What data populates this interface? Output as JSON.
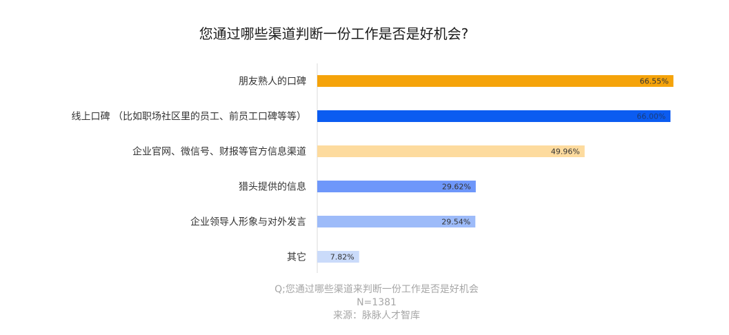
{
  "chart_data": {
    "type": "bar",
    "orientation": "horizontal",
    "title": "您通过哪些渠道判断一份工作是否是好机会?",
    "categories": [
      "朋友熟人的口碑",
      "线上口碑 （比如职场社区里的员工、前员工口碑等等）",
      "企业官网、微信号、财报等官方信息渠道",
      "猎头提供的信息",
      "企业领导人形象与对外发言",
      "其它"
    ],
    "values": [
      66.55,
      66.0,
      49.96,
      29.62,
      29.54,
      7.82
    ],
    "value_labels": [
      "66.55%",
      "66.00%",
      "49.96%",
      "29.62%",
      "29.54%",
      "7.82%"
    ],
    "bar_colors": [
      "#F5A30A",
      "#0B5CF1",
      "#FDDB9E",
      "#6E97FA",
      "#9DBBF9",
      "#CADBFA"
    ],
    "label_colors": [
      "#333333",
      "#1a3c7a",
      "#333333",
      "#333333",
      "#333333",
      "#333333"
    ],
    "xlim": [
      0,
      100
    ],
    "grid": false,
    "legend": "none"
  },
  "footer": {
    "question": "Q;您通过哪些渠道来判断一份工作是否是好机会",
    "sample": "N=1381",
    "source": "来源：脉脉人才智库"
  }
}
